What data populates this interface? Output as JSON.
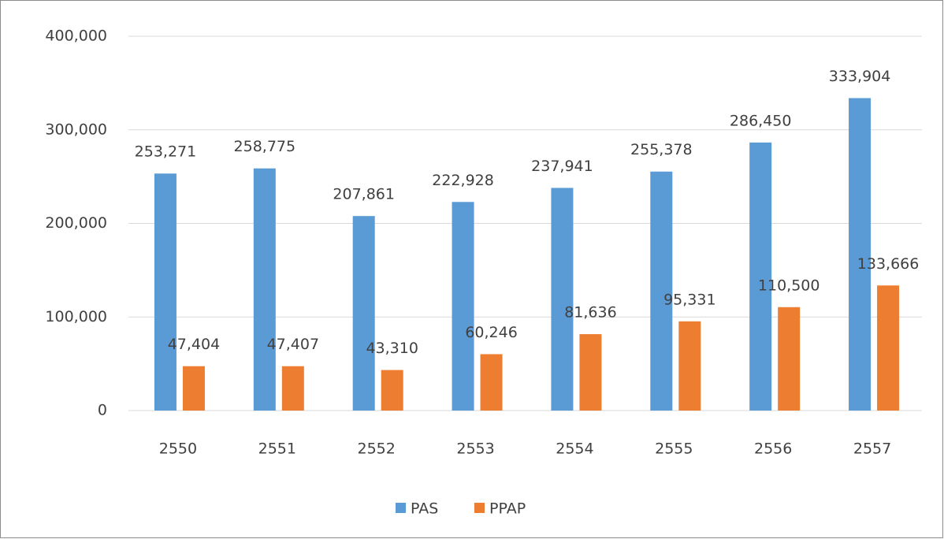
{
  "chart_data": {
    "type": "bar",
    "categories": [
      "2550",
      "2551",
      "2552",
      "2553",
      "2554",
      "2555",
      "2556",
      "2557"
    ],
    "series": [
      {
        "name": "PAS",
        "color": "#5b9bd5",
        "values": [
          253271,
          258775,
          207861,
          222928,
          237941,
          255378,
          286450,
          333904
        ],
        "value_labels": [
          "253,271",
          "258,775",
          "207,861",
          "222,928",
          "237,941",
          "255,378",
          "286,450",
          "333,904"
        ]
      },
      {
        "name": "PPAP",
        "color": "#ed7d31",
        "values": [
          47404,
          47407,
          43310,
          60246,
          81636,
          95331,
          110500,
          133666
        ],
        "value_labels": [
          "47,404",
          "47,407",
          "43,310",
          "60,246",
          "81,636",
          "95,331",
          "110,500",
          "133,666"
        ]
      }
    ],
    "ylim": [
      0,
      400000
    ],
    "yticks": [
      0,
      {
        "value": 100000,
        "label": "100,000"
      },
      {
        "value": 200000,
        "label": "200,000"
      },
      {
        "value": 300000,
        "label": "300,000"
      },
      {
        "value": 400000,
        "label": "400,000"
      }
    ],
    "grid": true,
    "legend": "bottom"
  }
}
